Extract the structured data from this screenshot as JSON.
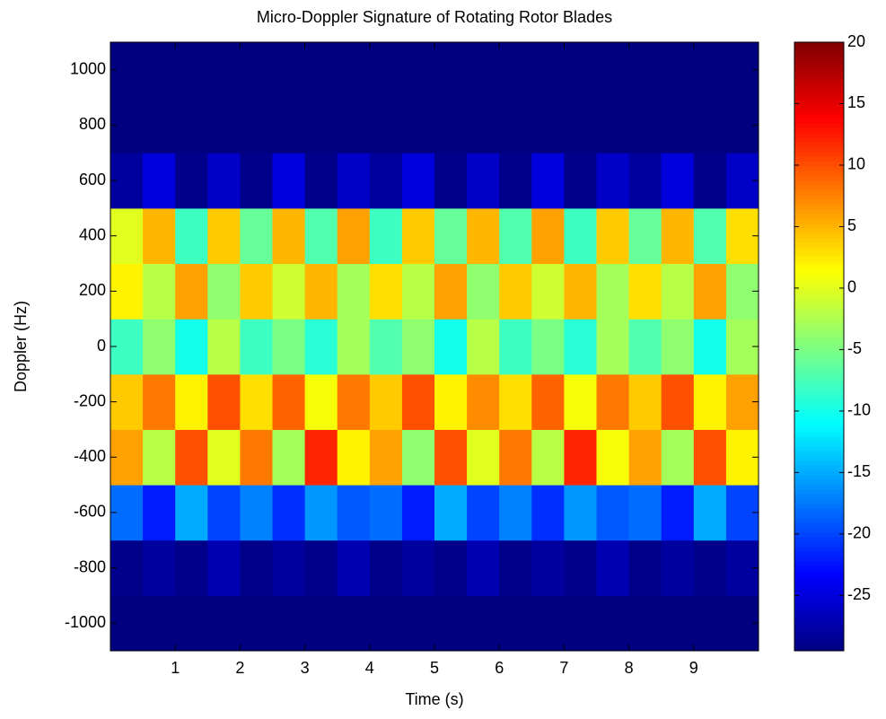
{
  "chart_data": {
    "type": "heatmap",
    "title": "Micro-Doppler Signature of Rotating Rotor Blades",
    "x_label": "Time (s)",
    "y_label": "Doppler (Hz)",
    "x": [
      0.25,
      0.75,
      1.25,
      1.75,
      2.25,
      2.75,
      3.25,
      3.75,
      4.25,
      4.75,
      5.25,
      5.75,
      6.25,
      6.75,
      7.25,
      7.75,
      8.25,
      8.75,
      9.25,
      9.75
    ],
    "y": [
      -1000,
      -800,
      -600,
      -400,
      -200,
      0,
      200,
      400,
      600,
      800,
      1000
    ],
    "z": [
      [
        -30,
        -30,
        -30,
        -30,
        -30,
        -30,
        -30,
        -30,
        -30,
        -30,
        -30,
        -30,
        -30,
        -30,
        -30,
        -30,
        -30,
        -30,
        -30,
        -30
      ],
      [
        -29,
        -28,
        -29,
        -27,
        -29,
        -28,
        -29,
        -27,
        -29,
        -28,
        -29,
        -27,
        -29,
        -28,
        -29,
        -27,
        -29,
        -28,
        -29,
        -28
      ],
      [
        -18,
        -22,
        -15,
        -20,
        -17,
        -21,
        -16,
        -19,
        -18,
        -22,
        -15,
        -20,
        -17,
        -21,
        -16,
        -19,
        -18,
        -22,
        -15,
        -20
      ],
      [
        6,
        -2,
        10,
        0,
        8,
        -3,
        12,
        2,
        6,
        -4,
        10,
        0,
        8,
        -2,
        12,
        1,
        6,
        -3,
        10,
        2
      ],
      [
        4,
        8,
        2,
        10,
        3,
        9,
        1,
        8,
        4,
        10,
        2,
        7,
        3,
        9,
        1,
        8,
        4,
        10,
        2,
        6
      ],
      [
        -8,
        -4,
        -10,
        -2,
        -8,
        -5,
        -9,
        -3,
        -7,
        -4,
        -10,
        -2,
        -8,
        -5,
        -9,
        -3,
        -7,
        -4,
        -10,
        -3
      ],
      [
        2,
        -2,
        6,
        -4,
        4,
        -1,
        5,
        -3,
        3,
        -2,
        6,
        -4,
        4,
        -1,
        5,
        -3,
        3,
        -2,
        6,
        -4
      ],
      [
        0,
        5,
        -8,
        4,
        -6,
        5,
        -7,
        6,
        -8,
        4,
        -6,
        5,
        -7,
        6,
        -8,
        4,
        -6,
        5,
        -7,
        3
      ],
      [
        -28,
        -25,
        -29,
        -26,
        -29,
        -25,
        -29,
        -26,
        -28,
        -25,
        -29,
        -26,
        -29,
        -25,
        -29,
        -26,
        -28,
        -25,
        -29,
        -26
      ],
      [
        -30,
        -30,
        -30,
        -30,
        -30,
        -30,
        -30,
        -30,
        -30,
        -30,
        -30,
        -30,
        -30,
        -30,
        -30,
        -30,
        -30,
        -30,
        -30,
        -30
      ],
      [
        -30,
        -30,
        -30,
        -30,
        -30,
        -30,
        -30,
        -30,
        -30,
        -30,
        -30,
        -30,
        -30,
        -30,
        -30,
        -30,
        -30,
        -30,
        -30,
        -30
      ]
    ],
    "colormap": "jet",
    "xlim": [
      0,
      10
    ],
    "xticks": [
      1,
      2,
      3,
      4,
      5,
      6,
      7,
      8,
      9
    ],
    "ylim": [
      -1100,
      1100
    ],
    "yticks": [
      -1000,
      -800,
      -600,
      -400,
      -200,
      0,
      200,
      400,
      600,
      800,
      1000
    ],
    "clim": [
      -29.5,
      20
    ],
    "cticks": [
      -25,
      -20,
      -15,
      -10,
      -5,
      0,
      5,
      10,
      15,
      20
    ]
  }
}
